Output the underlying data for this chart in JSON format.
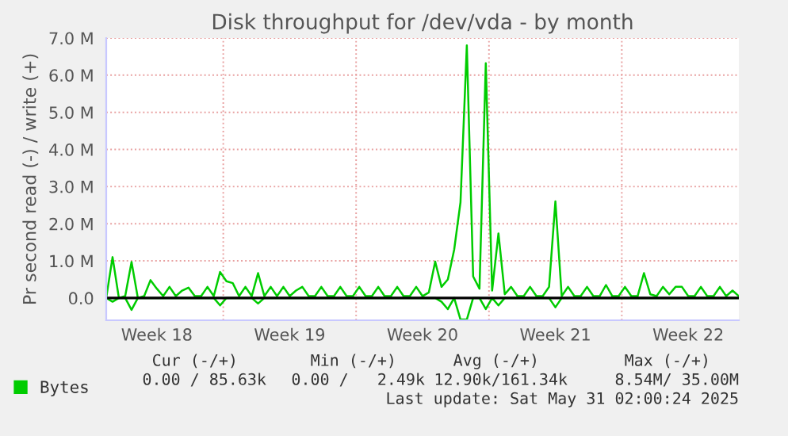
{
  "chart_data": {
    "type": "line",
    "title": "Disk throughput for /dev/vda - by month",
    "ylabel": "Pr second read (-) / write (+)",
    "categories": [
      null,
      null,
      null,
      null,
      null,
      null,
      null,
      null,
      "Week 18",
      null,
      null,
      null,
      null,
      null,
      null,
      null,
      null,
      null,
      null,
      null,
      null,
      null,
      null,
      null,
      null,
      null,
      null,
      null,
      null,
      "Week 19",
      null,
      null,
      null,
      null,
      null,
      null,
      null,
      null,
      null,
      null,
      null,
      null,
      null,
      null,
      null,
      null,
      null,
      null,
      null,
      null,
      "Week 20",
      null,
      null,
      null,
      null,
      null,
      null,
      null,
      null,
      null,
      null,
      null,
      null,
      null,
      null,
      null,
      null,
      null,
      null,
      null,
      null,
      "Week 21",
      null,
      null,
      null,
      null,
      null,
      null,
      null,
      null,
      null,
      null,
      null,
      null,
      null,
      null,
      null,
      null,
      null,
      null,
      null,
      null,
      "Week 22",
      null,
      null,
      null,
      null,
      null,
      null,
      null,
      null
    ],
    "ylim": [
      -0.6,
      7.0
    ],
    "yticks": [
      {
        "value": 0,
        "label": "0.0"
      },
      {
        "value": 1,
        "label": "1.0 M"
      },
      {
        "value": 2,
        "label": "2.0 M"
      },
      {
        "value": 3,
        "label": "3.0 M"
      },
      {
        "value": 4,
        "label": "4.0 M"
      },
      {
        "value": 5,
        "label": "5.0 M"
      },
      {
        "value": 6,
        "label": "6.0 M"
      },
      {
        "value": 7,
        "label": "7.0 M"
      }
    ],
    "grid": true,
    "legend": "bottom left",
    "marker": "none",
    "line_style": "solid",
    "ref_lines": [
      {
        "axis": "y",
        "value": 0,
        "color": "#000000"
      }
    ],
    "series": [
      {
        "name": "Bytes",
        "color": "#00cc00",
        "values": [
          0.0,
          1.1,
          0.0,
          0.05,
          0.97,
          0.0,
          0.05,
          0.48,
          0.25,
          0.05,
          0.3,
          0.05,
          0.2,
          0.28,
          0.05,
          0.05,
          0.3,
          0.05,
          0.7,
          0.45,
          0.4,
          0.05,
          0.3,
          0.05,
          0.67,
          0.05,
          0.3,
          0.05,
          0.3,
          0.05,
          0.2,
          0.3,
          0.05,
          0.05,
          0.3,
          0.05,
          0.05,
          0.3,
          0.05,
          0.05,
          0.3,
          0.05,
          0.05,
          0.3,
          0.05,
          0.05,
          0.3,
          0.05,
          0.05,
          0.3,
          0.05,
          0.15,
          0.98,
          0.3,
          0.5,
          1.3,
          2.58,
          6.8,
          0.58,
          0.25,
          6.32,
          0.2,
          1.74,
          0.1,
          0.3,
          0.05,
          0.05,
          0.3,
          0.05,
          0.05,
          0.3,
          2.6,
          0.05,
          0.3,
          0.05,
          0.05,
          0.3,
          0.05,
          0.05,
          0.35,
          0.05,
          0.05,
          0.3,
          0.05,
          0.05,
          0.67,
          0.1,
          0.05,
          0.3,
          0.1,
          0.3,
          0.3,
          0.05,
          0.05,
          0.3,
          0.05,
          0.05,
          0.3,
          0.05,
          0.2,
          0.05
        ]
      },
      {
        "color": "#00cc00",
        "values": [
          0,
          -0.1,
          0,
          0,
          -0.32,
          0,
          0,
          0,
          0,
          0,
          0,
          0,
          0,
          0,
          0,
          0,
          0,
          0,
          -0.2,
          0,
          0,
          0,
          0,
          0,
          -0.15,
          0,
          0,
          0,
          0,
          0,
          0,
          0,
          0,
          0,
          0,
          0,
          0,
          0,
          0,
          0,
          0,
          0,
          0,
          0,
          0,
          0,
          0,
          0,
          0,
          0,
          0,
          0,
          0,
          -0.1,
          -0.3,
          0,
          -0.58,
          -0.58,
          0,
          0,
          -0.3,
          0,
          -0.2,
          0,
          0,
          0,
          0,
          0,
          0,
          0,
          0,
          -0.25,
          0,
          0,
          0,
          0,
          0,
          0,
          0,
          0,
          0,
          0,
          0,
          0,
          0,
          0,
          0,
          0,
          0,
          0,
          0,
          0,
          0,
          0,
          0,
          0,
          0,
          0,
          0,
          0,
          0
        ]
      }
    ],
    "annotations": [
      "Cur (-/+)",
      "Min (-/+)",
      "Avg (-/+)",
      "Max (-/+)",
      "0.00 / 85.63k",
      "0.00 /   2.49k",
      "12.90k/161.34k",
      "8.54M/ 35.00M",
      "Last update: Sat May 31 02:00:24 2025"
    ]
  }
}
